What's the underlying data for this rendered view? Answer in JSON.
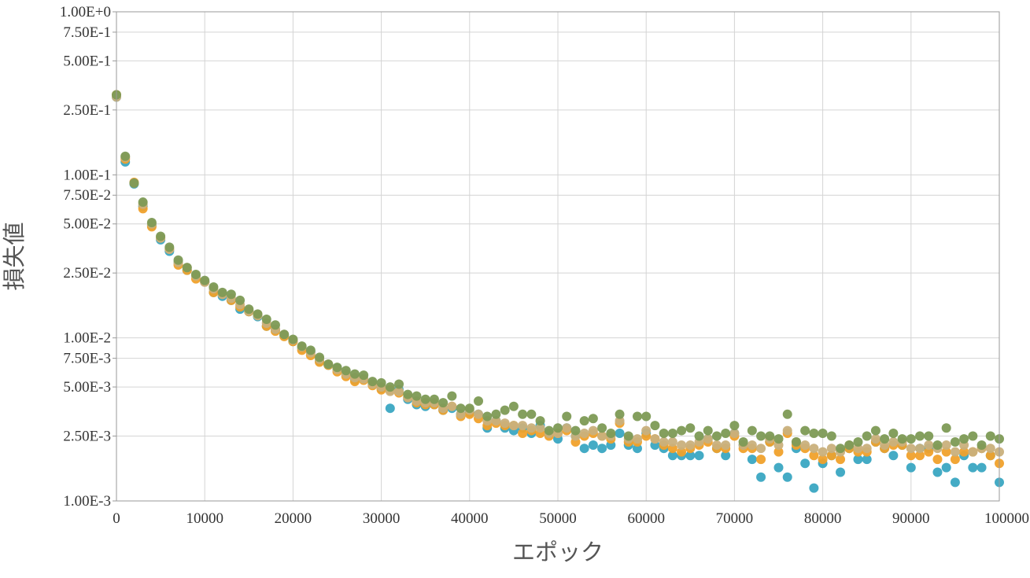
{
  "chart_data": {
    "type": "scatter",
    "title": "",
    "xlabel": "エポック",
    "ylabel": "損失値",
    "xlim": [
      0,
      100000
    ],
    "ylim": [
      0.001,
      1.0
    ],
    "yscale": "log",
    "grid": true,
    "x_ticks": [
      0,
      10000,
      20000,
      30000,
      40000,
      50000,
      60000,
      70000,
      80000,
      90000,
      100000
    ],
    "x_tick_labels": [
      "0",
      "10000",
      "20000",
      "30000",
      "40000",
      "50000",
      "60000",
      "70000",
      "80000",
      "90000",
      "100000"
    ],
    "y_ticks": [
      1.0,
      0.75,
      0.5,
      0.25,
      0.1,
      0.075,
      0.05,
      0.025,
      0.01,
      0.0075,
      0.005,
      0.0025,
      0.001
    ],
    "y_tick_labels": [
      "1.00E+0",
      "7.50E-1",
      "5.00E-1",
      "2.50E-1",
      "1.00E-1",
      "7.50E-2",
      "5.00E-2",
      "2.50E-2",
      "1.00E-2",
      "7.50E-3",
      "5.00E-3",
      "2.50E-3",
      "1.00E-3"
    ],
    "x": [
      0,
      1000,
      2000,
      3000,
      4000,
      5000,
      6000,
      7000,
      8000,
      9000,
      10000,
      11000,
      12000,
      13000,
      14000,
      15000,
      16000,
      17000,
      18000,
      19000,
      20000,
      21000,
      22000,
      23000,
      24000,
      25000,
      26000,
      27000,
      28000,
      29000,
      30000,
      31000,
      32000,
      33000,
      34000,
      35000,
      36000,
      37000,
      38000,
      39000,
      40000,
      41000,
      42000,
      43000,
      44000,
      45000,
      46000,
      47000,
      48000,
      49000,
      50000,
      51000,
      52000,
      53000,
      54000,
      55000,
      56000,
      57000,
      58000,
      59000,
      60000,
      61000,
      62000,
      63000,
      64000,
      65000,
      66000,
      67000,
      68000,
      69000,
      70000,
      71000,
      72000,
      73000,
      74000,
      75000,
      76000,
      77000,
      78000,
      79000,
      80000,
      81000,
      82000,
      83000,
      84000,
      85000,
      86000,
      87000,
      88000,
      89000,
      90000,
      91000,
      92000,
      93000,
      94000,
      95000,
      96000,
      97000,
      98000,
      99000,
      100000
    ],
    "series": [
      {
        "color": "#3aa6c2",
        "values": [
          0.3,
          0.12,
          0.088,
          0.064,
          0.049,
          0.04,
          0.034,
          0.029,
          0.026,
          0.024,
          0.022,
          0.019,
          0.018,
          0.017,
          0.015,
          0.0145,
          0.0135,
          0.0118,
          0.0112,
          0.0103,
          0.0095,
          0.0087,
          0.0082,
          0.0072,
          0.0068,
          0.0065,
          0.006,
          0.0055,
          0.0056,
          0.0052,
          0.0049,
          0.0037,
          0.0048,
          0.0042,
          0.0039,
          0.0038,
          0.0039,
          0.0036,
          0.0037,
          0.0034,
          0.0035,
          0.0034,
          0.0028,
          0.0031,
          0.0028,
          0.0027,
          0.0028,
          0.0026,
          0.0029,
          0.0026,
          0.0024,
          0.0028,
          0.0025,
          0.0021,
          0.0022,
          0.0021,
          0.0022,
          0.0026,
          0.0022,
          0.0021,
          0.0026,
          0.0022,
          0.0021,
          0.0019,
          0.0019,
          0.0019,
          0.0019,
          0.0024,
          0.0021,
          0.0019,
          0.0026,
          0.0022,
          0.0018,
          0.0014,
          0.0023,
          0.0016,
          0.0014,
          0.0021,
          0.0017,
          0.0012,
          0.0017,
          0.0019,
          0.0015,
          0.0021,
          0.0018,
          0.0018,
          0.0023,
          0.0021,
          0.0019,
          0.0022,
          0.0016,
          0.0021,
          0.0021,
          0.0015,
          0.0016,
          0.0013,
          0.0019,
          0.0016,
          0.0016,
          0.0019,
          0.0013
        ]
      },
      {
        "color": "#f0a12b",
        "values": [
          0.31,
          0.125,
          0.09,
          0.062,
          0.048,
          0.041,
          0.035,
          0.028,
          0.026,
          0.023,
          0.022,
          0.019,
          0.0185,
          0.017,
          0.0155,
          0.0145,
          0.0138,
          0.0118,
          0.011,
          0.0102,
          0.0095,
          0.0084,
          0.0078,
          0.0071,
          0.0068,
          0.0062,
          0.0058,
          0.0054,
          0.0055,
          0.0051,
          0.0048,
          0.0048,
          0.0046,
          0.0043,
          0.004,
          0.0039,
          0.0039,
          0.0036,
          0.0038,
          0.0033,
          0.0034,
          0.0032,
          0.0029,
          0.003,
          0.0029,
          0.0029,
          0.0026,
          0.0027,
          0.0026,
          0.0025,
          0.0026,
          0.0027,
          0.0023,
          0.0025,
          0.0026,
          0.0025,
          0.0024,
          0.003,
          0.0023,
          0.0023,
          0.0025,
          0.0024,
          0.0022,
          0.0021,
          0.002,
          0.0021,
          0.0022,
          0.0023,
          0.0021,
          0.0021,
          0.0025,
          0.0021,
          0.0021,
          0.0018,
          0.0023,
          0.002,
          0.0026,
          0.0022,
          0.0021,
          0.0019,
          0.0018,
          0.0019,
          0.0018,
          0.0021,
          0.002,
          0.002,
          0.0023,
          0.0021,
          0.0022,
          0.0022,
          0.0019,
          0.0019,
          0.002,
          0.0018,
          0.002,
          0.0018,
          0.002,
          0.002,
          0.0021,
          0.0019,
          0.0017
        ]
      },
      {
        "color": "#c9b07c",
        "values": [
          0.3,
          0.128,
          0.089,
          0.066,
          0.05,
          0.041,
          0.035,
          0.029,
          0.027,
          0.024,
          0.022,
          0.02,
          0.0185,
          0.0175,
          0.016,
          0.0146,
          0.0137,
          0.0123,
          0.0113,
          0.0105,
          0.0097,
          0.0088,
          0.0081,
          0.0074,
          0.0069,
          0.0064,
          0.006,
          0.0057,
          0.0056,
          0.0052,
          0.005,
          0.0047,
          0.0047,
          0.0043,
          0.0041,
          0.004,
          0.004,
          0.0037,
          0.0038,
          0.0034,
          0.0036,
          0.0034,
          0.0031,
          0.0031,
          0.003,
          0.0029,
          0.0029,
          0.0028,
          0.0028,
          0.0026,
          0.0026,
          0.0028,
          0.0025,
          0.0026,
          0.0027,
          0.0025,
          0.0025,
          0.0031,
          0.0024,
          0.0024,
          0.0027,
          0.0024,
          0.0023,
          0.0023,
          0.0022,
          0.0022,
          0.0023,
          0.0024,
          0.0022,
          0.0022,
          0.0026,
          0.0022,
          0.0022,
          0.0021,
          0.0024,
          0.0022,
          0.0027,
          0.0023,
          0.0022,
          0.0021,
          0.002,
          0.0021,
          0.002,
          0.0022,
          0.0021,
          0.0021,
          0.0024,
          0.0022,
          0.0023,
          0.0023,
          0.0021,
          0.0021,
          0.0022,
          0.0021,
          0.0022,
          0.002,
          0.0022,
          0.002,
          0.0021,
          0.0021,
          0.002
        ]
      },
      {
        "color": "#7d9a55",
        "values": [
          0.31,
          0.13,
          0.089,
          0.068,
          0.051,
          0.042,
          0.036,
          0.03,
          0.027,
          0.0245,
          0.0225,
          0.0205,
          0.019,
          0.0185,
          0.017,
          0.015,
          0.014,
          0.013,
          0.012,
          0.0105,
          0.0098,
          0.0089,
          0.0084,
          0.0076,
          0.0069,
          0.0066,
          0.0063,
          0.006,
          0.0059,
          0.0054,
          0.0053,
          0.005,
          0.0052,
          0.0045,
          0.0044,
          0.0042,
          0.0042,
          0.004,
          0.0044,
          0.0037,
          0.0037,
          0.0041,
          0.0033,
          0.0034,
          0.0036,
          0.0038,
          0.0034,
          0.0034,
          0.0031,
          0.0027,
          0.0028,
          0.0033,
          0.0027,
          0.0031,
          0.0032,
          0.0028,
          0.0026,
          0.0034,
          0.0025,
          0.0033,
          0.0033,
          0.0029,
          0.0026,
          0.0026,
          0.0027,
          0.0028,
          0.0025,
          0.0027,
          0.0025,
          0.0026,
          0.0029,
          0.0023,
          0.0027,
          0.0025,
          0.0025,
          0.0024,
          0.0034,
          0.0023,
          0.0027,
          0.0026,
          0.0026,
          0.0025,
          0.0021,
          0.0022,
          0.0023,
          0.0025,
          0.0027,
          0.0024,
          0.0026,
          0.0024,
          0.0024,
          0.0025,
          0.0025,
          0.0022,
          0.0028,
          0.0023,
          0.0024,
          0.0025,
          0.0022,
          0.0025,
          0.0024
        ]
      }
    ]
  }
}
